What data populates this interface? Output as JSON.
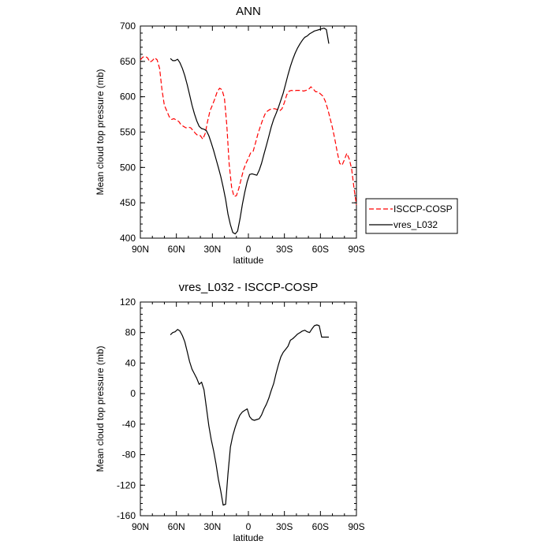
{
  "chart_data": [
    {
      "type": "line",
      "title": "ANN",
      "xlabel": "latitude",
      "ylabel": "Mean cloud top pressure (mb)",
      "xlim": [
        90,
        -90
      ],
      "ylim": [
        400,
        700
      ],
      "x_ticks": [
        90,
        60,
        30,
        0,
        -30,
        -60,
        -90
      ],
      "x_tick_labels": [
        "90N",
        "60N",
        "30N",
        "0",
        "30S",
        "60S",
        "90S"
      ],
      "y_ticks": [
        400,
        450,
        500,
        550,
        600,
        650,
        700
      ],
      "y_tick_labels": [
        "400",
        "450",
        "500",
        "550",
        "600",
        "650",
        "700"
      ],
      "grid": false,
      "legend_position": "right",
      "series": [
        {
          "name": "ISCCP-COSP",
          "style": "dashed",
          "color": "#ff0000",
          "x": [
            90,
            88,
            86,
            84,
            82,
            80,
            78,
            76,
            74,
            72,
            70,
            68,
            66,
            64,
            62,
            60,
            58,
            56,
            54,
            52,
            50,
            48,
            46,
            44,
            42,
            40,
            38,
            36,
            34,
            32,
            30,
            28,
            26,
            24,
            22,
            20,
            18,
            16,
            14,
            12,
            10,
            8,
            6,
            4,
            2,
            0,
            -2,
            -4,
            -6,
            -8,
            -10,
            -12,
            -14,
            -16,
            -18,
            -20,
            -22,
            -24,
            -26,
            -28,
            -30,
            -32,
            -34,
            -36,
            -38,
            -40,
            -42,
            -44,
            -46,
            -48,
            -50,
            -52,
            -54,
            -56,
            -58,
            -60,
            -62,
            -64,
            -66,
            -68,
            -70,
            -72,
            -74,
            -76,
            -78,
            -80,
            -82,
            -84,
            -86,
            -88,
            -90
          ],
          "y": [
            652,
            656,
            657,
            655,
            649,
            651,
            655,
            652,
            640,
            610,
            588,
            580,
            572,
            568,
            569,
            567,
            565,
            560,
            558,
            556,
            557,
            556,
            552,
            548,
            545,
            545,
            540,
            548,
            565,
            580,
            588,
            597,
            607,
            612,
            610,
            598,
            560,
            505,
            472,
            459,
            460,
            470,
            484,
            497,
            506,
            513,
            521,
            523,
            535,
            548,
            558,
            568,
            576,
            580,
            582,
            583,
            583,
            582,
            580,
            583,
            592,
            603,
            608,
            609,
            608,
            609,
            609,
            609,
            608,
            609,
            610,
            614,
            611,
            607,
            607,
            604,
            601,
            594,
            583,
            570,
            556,
            540,
            522,
            506,
            503,
            511,
            520,
            512,
            498,
            470,
            447
          ]
        },
        {
          "name": "vres_L032",
          "style": "solid",
          "color": "#000000",
          "x": [
            65,
            63,
            61,
            59,
            57,
            55,
            53,
            51,
            49,
            47,
            45,
            43,
            41,
            39,
            37,
            35,
            33,
            31,
            29,
            27,
            25,
            23,
            21,
            19,
            17,
            15,
            13,
            11,
            9,
            7,
            5,
            3,
            1,
            -1,
            -3,
            -5,
            -7,
            -9,
            -11,
            -13,
            -15,
            -17,
            -19,
            -21,
            -23,
            -25,
            -27,
            -29,
            -31,
            -33,
            -35,
            -37,
            -39,
            -41,
            -43,
            -45,
            -47,
            -49,
            -51,
            -53,
            -55,
            -57,
            -59,
            -61,
            -63,
            -65,
            -67
          ],
          "y": [
            654,
            651,
            651,
            653,
            648,
            640,
            630,
            617,
            603,
            588,
            576,
            566,
            558,
            555,
            554,
            552,
            545,
            535,
            524,
            512,
            500,
            487,
            472,
            455,
            434,
            419,
            408,
            406,
            410,
            427,
            448,
            465,
            480,
            490,
            491,
            490,
            489,
            496,
            506,
            519,
            531,
            544,
            557,
            568,
            576,
            585,
            595,
            605,
            618,
            631,
            643,
            653,
            662,
            669,
            675,
            680,
            684,
            686,
            689,
            691,
            693,
            694,
            695,
            696,
            697,
            695,
            675
          ]
        }
      ]
    },
    {
      "type": "line",
      "title": "vres_L032 - ISCCP-COSP",
      "xlabel": "latitude",
      "ylabel": "Mean cloud top pressure (mb)",
      "xlim": [
        90,
        -90
      ],
      "ylim": [
        -160,
        120
      ],
      "x_ticks": [
        90,
        60,
        30,
        0,
        -30,
        -60,
        -90
      ],
      "x_tick_labels": [
        "90N",
        "60N",
        "30N",
        "0",
        "30S",
        "60S",
        "90S"
      ],
      "y_ticks": [
        -160,
        -120,
        -80,
        -40,
        0,
        40,
        80,
        120
      ],
      "y_tick_labels": [
        "-160",
        "-120",
        "-80",
        "-40",
        "0",
        "40",
        "80",
        "120"
      ],
      "grid": false,
      "series": [
        {
          "style": "solid",
          "color": "#000000",
          "x": [
            65,
            63,
            61,
            59,
            57,
            55,
            53,
            51,
            49,
            47,
            45,
            43,
            41,
            39,
            37,
            35,
            33,
            31,
            29,
            27,
            25,
            23,
            21,
            19,
            17,
            15,
            13,
            11,
            9,
            7,
            5,
            3,
            1,
            -1,
            -3,
            -5,
            -7,
            -9,
            -11,
            -13,
            -15,
            -17,
            -19,
            -21,
            -23,
            -25,
            -27,
            -29,
            -31,
            -33,
            -35,
            -37,
            -39,
            -41,
            -43,
            -45,
            -47,
            -49,
            -51,
            -53,
            -55,
            -57,
            -59,
            -61,
            -63,
            -65,
            -67
          ],
          "y": [
            77,
            80,
            81,
            84,
            82,
            76,
            68,
            55,
            42,
            32,
            26,
            20,
            12,
            15,
            5,
            -18,
            -42,
            -60,
            -75,
            -92,
            -112,
            -128,
            -146,
            -145,
            -105,
            -70,
            -55,
            -44,
            -35,
            -28,
            -24,
            -22,
            -20,
            -30,
            -34,
            -35,
            -34,
            -33,
            -28,
            -20,
            -14,
            -6,
            4,
            13,
            26,
            38,
            48,
            54,
            58,
            62,
            70,
            72,
            75,
            78,
            80,
            82,
            83,
            81,
            80,
            85,
            89,
            90,
            89,
            74,
            74,
            74,
            74
          ]
        }
      ]
    }
  ]
}
